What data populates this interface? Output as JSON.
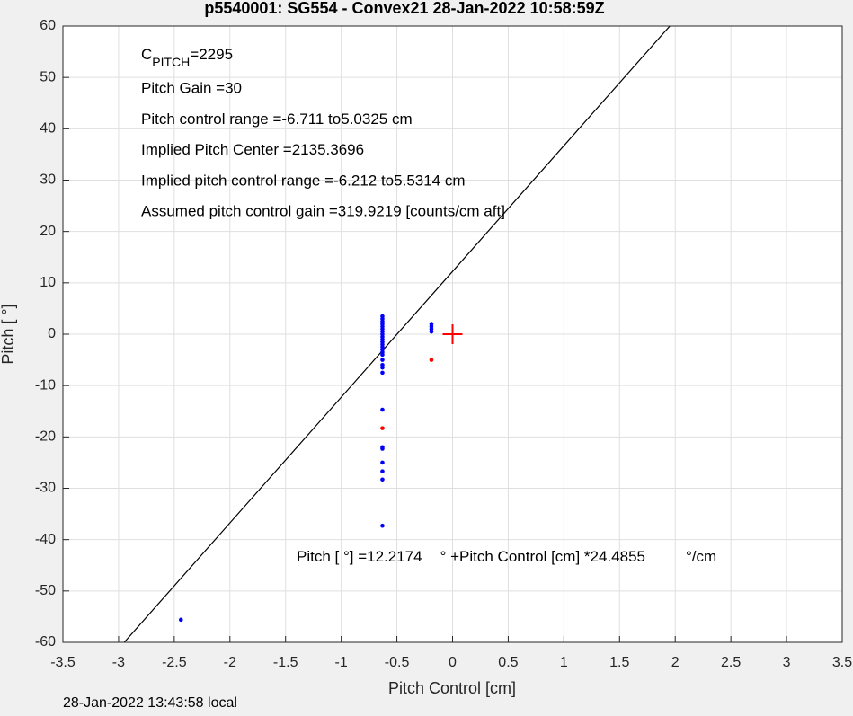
{
  "chart_data": {
    "type": "scatter",
    "title": "p5540001: SG554 - Convex21 28-Jan-2022 10:58:59Z",
    "xlabel": "Pitch Control [cm]",
    "ylabel": "Pitch [  °]",
    "footer": "28-Jan-2022 13:43:58 local",
    "xlim": [
      -3.5,
      3.5
    ],
    "ylim": [
      -60,
      60
    ],
    "xticks": [
      -3.5,
      -3,
      -2.5,
      -2,
      -1.5,
      -1,
      -0.5,
      0,
      0.5,
      1,
      1.5,
      2,
      2.5,
      3,
      3.5
    ],
    "yticks": [
      -60,
      -50,
      -40,
      -30,
      -20,
      -10,
      0,
      10,
      20,
      30,
      40,
      50,
      60
    ],
    "grid": true,
    "series": [
      {
        "color": "#0000ff",
        "marker": "dot",
        "x": [
          -0.63,
          -0.63,
          -0.63,
          -0.63,
          -0.63,
          -0.63,
          -0.63,
          -0.63,
          -0.63,
          -0.63,
          -0.63,
          -0.63,
          -0.63,
          -0.63,
          -0.63,
          -0.63,
          -0.63,
          -0.63,
          -0.63,
          -0.63,
          -0.63,
          -0.63,
          -0.63,
          -0.63,
          -0.63,
          -0.63,
          -0.63,
          -0.19,
          -0.19,
          -0.19,
          -0.19,
          -2.44
        ],
        "values": [
          3.5,
          3,
          2.5,
          2,
          1.5,
          1,
          0.5,
          0,
          -0.5,
          -1,
          -1.5,
          -2,
          -2.5,
          -3,
          -3.5,
          -4,
          -5,
          -6,
          -6.5,
          -7.5,
          -14.7,
          -22,
          -22.3,
          -25,
          -26.7,
          -28.3,
          -37.3,
          2,
          1.5,
          1,
          0.5,
          -55.6
        ]
      },
      {
        "color": "#ff0000",
        "marker": "dot",
        "x": [
          -0.63,
          -0.19
        ],
        "values": [
          -18.3,
          -5
        ]
      },
      {
        "color": "#ff0000",
        "marker": "cross",
        "x": [
          0
        ],
        "values": [
          0
        ]
      }
    ],
    "fit": {
      "color": "#000000",
      "prefix": "Pitch [  °] =",
      "intercept": 12.2174,
      "mid": "° +Pitch Control [cm] *",
      "slope": 24.4855,
      "suffix": "°/cm"
    },
    "cpitch": {
      "base": "C",
      "sub": "PITCH",
      "value": "=2295"
    },
    "annotations": [
      "Pitch Gain =30",
      "Pitch control range =-6.711 to5.0325 cm",
      "Implied Pitch Center =2135.3696",
      "Implied pitch control range =-6.212 to5.5314 cm",
      "Assumed pitch control gain =319.9219 [counts/cm aft]"
    ]
  }
}
